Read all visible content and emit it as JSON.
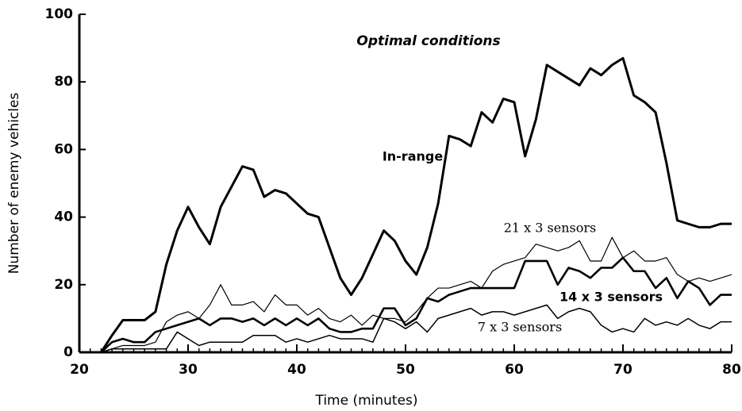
{
  "chart_data": {
    "type": "line",
    "annotation": "Optimal conditions",
    "x_label": "Time (minutes)",
    "y_label": "Number of enemy vehicles",
    "x": [
      20,
      21,
      22,
      23,
      24,
      25,
      26,
      27,
      28,
      29,
      30,
      31,
      32,
      33,
      34,
      35,
      36,
      37,
      38,
      39,
      40,
      41,
      42,
      43,
      44,
      45,
      46,
      47,
      48,
      49,
      50,
      51,
      52,
      53,
      54,
      55,
      56,
      57,
      58,
      59,
      60,
      61,
      62,
      63,
      64,
      65,
      66,
      67,
      68,
      69,
      70,
      71,
      72,
      73,
      74,
      75,
      76,
      77,
      78,
      79,
      80
    ],
    "series": [
      {
        "name": "In-range",
        "color": "#000000",
        "line_width": 3,
        "values": [
          0,
          0,
          0,
          5,
          9.5,
          9.5,
          9.5,
          12,
          26,
          36,
          43,
          37,
          32,
          43,
          49,
          55,
          54,
          46,
          48,
          47,
          44,
          41,
          40,
          31,
          22,
          17,
          22,
          29,
          36,
          33,
          27,
          23,
          31,
          44,
          64,
          63,
          61,
          71,
          68,
          75,
          74,
          58,
          69,
          85,
          83,
          81,
          79,
          84,
          82,
          85,
          87,
          76,
          74,
          71,
          56,
          39,
          38,
          37,
          37,
          38,
          38
        ]
      },
      {
        "name": "21 x 3 sensors",
        "color": "#000000",
        "line_width": 1.2,
        "values": [
          0,
          0,
          0,
          1,
          2,
          2,
          2,
          3,
          9,
          11,
          12,
          10,
          14,
          20,
          14,
          14,
          15,
          12,
          17,
          14,
          14,
          11,
          13,
          10,
          9,
          11,
          8,
          11,
          10,
          10,
          9,
          12,
          16,
          19,
          19,
          20,
          21,
          19,
          24,
          26,
          27,
          28,
          32,
          31,
          30,
          31,
          33,
          27,
          27,
          34,
          28,
          30,
          27,
          27,
          28,
          23,
          21,
          22,
          21,
          22,
          23
        ]
      },
      {
        "name": "14 x 3 sensors",
        "color": "#000000",
        "line_width": 2.6,
        "values": [
          0,
          0,
          0,
          3,
          4,
          3,
          3,
          6,
          7,
          8,
          9,
          10,
          8,
          10,
          10,
          9,
          10,
          8,
          10,
          8,
          10,
          8,
          10,
          7,
          6,
          6,
          7,
          7,
          13,
          13,
          8,
          10,
          16,
          15,
          17,
          18,
          19,
          19,
          19,
          19,
          19,
          27,
          27,
          27,
          20,
          25,
          24,
          22,
          25,
          25,
          28,
          24,
          24,
          19,
          22,
          16,
          21,
          19,
          14,
          17,
          17
        ]
      },
      {
        "name": "7 x 3 sensors",
        "color": "#000000",
        "line_width": 1.5,
        "values": [
          0,
          0,
          0,
          1,
          1,
          1,
          1,
          1,
          1,
          6,
          4,
          2,
          3,
          3,
          3,
          3,
          5,
          5,
          5,
          3,
          4,
          3,
          4,
          5,
          4,
          4,
          4,
          3,
          10,
          9,
          7,
          9,
          6,
          10,
          11,
          12,
          13,
          11,
          12,
          12,
          11,
          12,
          13,
          14,
          10,
          12,
          13,
          12,
          8,
          6,
          7,
          6,
          10,
          8,
          9,
          8,
          10,
          8,
          7,
          9,
          9
        ]
      }
    ],
    "xlim": [
      20,
      80
    ],
    "ylim": [
      0,
      100
    ],
    "xticks": [
      20,
      30,
      40,
      50,
      60,
      70,
      80
    ],
    "yticks": [
      0,
      20,
      40,
      60,
      80,
      100
    ],
    "grid": false
  }
}
